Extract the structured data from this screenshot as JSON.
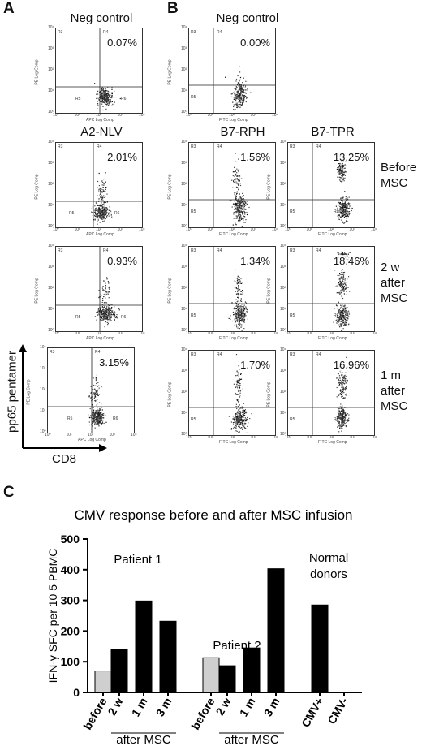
{
  "panels": {
    "a": "A",
    "b": "B",
    "c": "C"
  },
  "flow": {
    "neg_control_label": "Neg control",
    "a2_label": "A2-NLV",
    "b7rph_label": "B7-RPH",
    "b7tpr_label": "B7-TPR",
    "gates": {
      "r3": "R3",
      "r4": "R4",
      "r5": "R5",
      "r6": "R6"
    },
    "axis": {
      "pe": "PE Log Comp",
      "apc": "APC Log Comp",
      "fitc": "FITC Log Comp"
    },
    "ticks": [
      "10⁰",
      "10¹",
      "10²",
      "10³",
      "10⁴"
    ],
    "percent": {
      "a_neg": "0.07%",
      "a_before": "2.01%",
      "a_2w": "0.93%",
      "a_1m": "3.15%",
      "b_neg": "0.00%",
      "rph_before": "1.56%",
      "rph_2w": "1.34%",
      "rph_1m": "1.70%",
      "tpr_before": "13.25%",
      "tpr_2w": "18.46%",
      "tpr_1m": "16.96%"
    },
    "rows": {
      "before": [
        "Before",
        "MSC"
      ],
      "two_w": [
        "2 w",
        "after",
        "MSC"
      ],
      "one_m": [
        "1 m",
        "after",
        "MSC"
      ]
    },
    "y_axis_arrow": "pp65 pentamer",
    "x_axis_arrow": "CD8"
  },
  "chart_data": {
    "type": "bar",
    "title": "CMV response before and after MSC infusion",
    "ylabel": "IFN-γ SFC per 10 5 PBMC",
    "ylim": [
      0,
      500
    ],
    "yticks": [
      0,
      100,
      200,
      300,
      400,
      500
    ],
    "categories": [
      "before",
      "2 w",
      "1 m",
      "3 m",
      "before",
      "2 w",
      "1 m",
      "3 m",
      "CMV+",
      "CMV-"
    ],
    "values": [
      70,
      140,
      298,
      232,
      113,
      87,
      145,
      403,
      285,
      0
    ],
    "bar_colors": [
      "#cfcfcf",
      "#000000",
      "#000000",
      "#000000",
      "#cfcfcf",
      "#000000",
      "#000000",
      "#000000",
      "#000000",
      "#000000"
    ],
    "group_labels": [
      "Patient 1",
      "Patient 2",
      "Normal",
      "donors"
    ],
    "bracket_label": "after MSC"
  }
}
